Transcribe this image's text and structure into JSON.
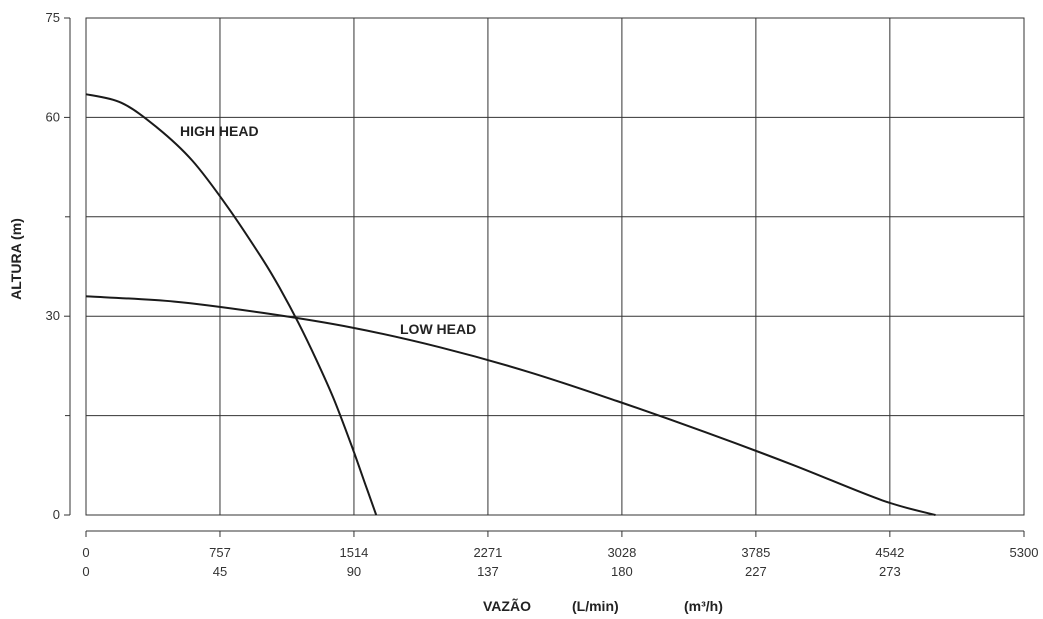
{
  "chart_data": {
    "type": "line",
    "ylabel": "ALTURA (m)",
    "xlabel": {
      "title": "VAZÃO",
      "unit_primary": "(L/min)",
      "unit_secondary": "(m³/h)"
    },
    "ylim": [
      0,
      75
    ],
    "xlim": [
      0,
      5300
    ],
    "y_ticks": [
      "0",
      "30",
      "60",
      "75"
    ],
    "y_minor_ticks": [
      15,
      45
    ],
    "x_ticks": [
      "0",
      "757",
      "1514",
      "2271",
      "3028",
      "3785",
      "4542",
      "5300"
    ],
    "x_ticks_secondary": [
      "0",
      "45",
      "90",
      "137",
      "180",
      "227",
      "273",
      ""
    ],
    "grid": true,
    "series": [
      {
        "name": "HIGH HEAD",
        "x": [
          0,
          200,
          400,
          600,
          800,
          1000,
          1100,
          1200,
          1300,
          1400,
          1500,
          1580,
          1640
        ],
        "y": [
          63.5,
          62.2,
          58.5,
          53.5,
          46.5,
          38.5,
          34.0,
          29.0,
          23.5,
          17.5,
          10.5,
          4.5,
          0
        ]
      },
      {
        "name": "LOW HEAD",
        "x": [
          0,
          500,
          1000,
          1500,
          2000,
          2500,
          3000,
          3500,
          4000,
          4500,
          4800
        ],
        "y": [
          33.0,
          32.2,
          30.5,
          28.3,
          25.3,
          21.6,
          17.2,
          12.5,
          7.5,
          2.2,
          0
        ]
      }
    ]
  }
}
